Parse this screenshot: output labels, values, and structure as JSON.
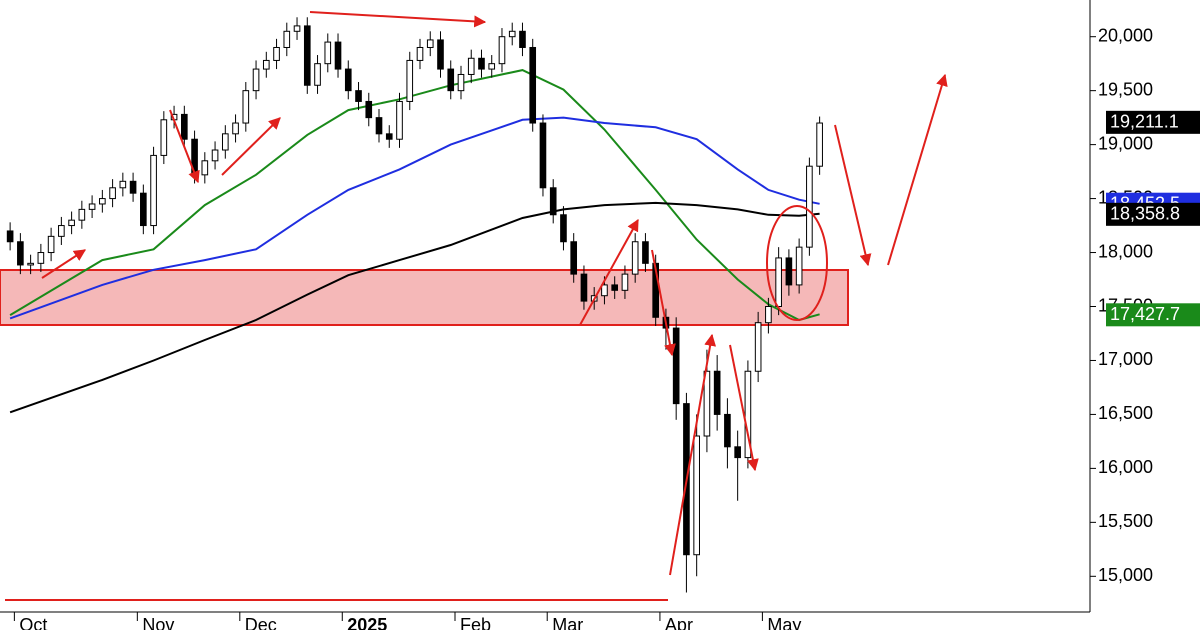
{
  "chart_data": {
    "type": "candlestick",
    "categories": [
      null,
      null,
      null,
      null,
      null,
      null,
      null,
      null,
      null,
      null,
      null,
      null,
      null,
      null,
      null,
      null,
      null,
      null,
      null,
      null,
      null,
      null,
      null,
      null,
      null,
      null,
      null,
      null,
      null,
      null,
      null,
      null,
      null,
      null,
      null,
      null,
      null,
      null,
      null,
      null,
      null,
      null,
      null,
      null,
      null,
      null,
      null,
      null,
      null,
      null,
      null,
      null,
      null,
      null,
      null,
      null,
      null,
      null,
      null,
      null,
      null,
      null,
      null,
      null,
      null,
      null,
      null,
      null,
      null,
      null,
      null,
      null,
      null,
      null,
      null,
      null,
      null,
      null,
      null,
      null
    ],
    "open": [
      18200,
      18100,
      17885,
      17900,
      18000,
      18150,
      18250,
      18300,
      18400,
      18450,
      18500,
      18600,
      18660,
      18550,
      18250,
      18900,
      19230,
      19280,
      19050,
      18720,
      18850,
      18950,
      19100,
      19200,
      19500,
      19700,
      19780,
      19900,
      20050,
      20100,
      19550,
      19750,
      19950,
      19700,
      19500,
      19400,
      19250,
      19100,
      19050,
      19400,
      19780,
      19900,
      19970,
      19700,
      19500,
      19650,
      19800,
      19700,
      19750,
      20000,
      20050,
      19900,
      19200,
      18600,
      18350,
      18100,
      17800,
      17550,
      17600,
      17700,
      17650,
      17800,
      18100,
      17900,
      17400,
      17300,
      16600,
      15200,
      16300,
      16900,
      16500,
      16200,
      16100,
      16900,
      17350,
      17500,
      17950,
      17700,
      18050,
      18800
    ],
    "high": [
      18280,
      18180,
      17980,
      18080,
      18230,
      18330,
      18380,
      18480,
      18530,
      18580,
      18680,
      18740,
      18740,
      18630,
      18980,
      19310,
      19360,
      19360,
      19130,
      18930,
      19030,
      19180,
      19280,
      19580,
      19780,
      19860,
      19980,
      20130,
      20180,
      20180,
      19830,
      20030,
      20030,
      19780,
      19580,
      19480,
      19330,
      19180,
      19480,
      19860,
      19980,
      20050,
      20050,
      19780,
      19730,
      19880,
      19880,
      19830,
      20080,
      20130,
      20130,
      19980,
      19280,
      18680,
      18430,
      18180,
      17880,
      17680,
      17780,
      17780,
      17880,
      18180,
      18180,
      17980,
      17480,
      17400,
      16700,
      16500,
      17100,
      17050,
      16650,
      16350,
      17000,
      17450,
      17580,
      18050,
      18030,
      18130,
      18880,
      19260
    ],
    "low": [
      18020,
      17800,
      17800,
      17820,
      17920,
      18070,
      18170,
      18220,
      18320,
      18370,
      18420,
      18520,
      18470,
      18170,
      18170,
      18820,
      19150,
      18970,
      18640,
      18640,
      18770,
      18870,
      19020,
      19120,
      19420,
      19620,
      19700,
      19820,
      19970,
      19470,
      19470,
      19670,
      19620,
      19420,
      19320,
      19170,
      19020,
      18970,
      18970,
      19320,
      19700,
      19820,
      19620,
      19420,
      19420,
      19570,
      19620,
      19620,
      19670,
      19920,
      19820,
      19120,
      18520,
      18270,
      18020,
      17720,
      17470,
      17470,
      17520,
      17570,
      17570,
      17720,
      17820,
      17320,
      17100,
      16450,
      14850,
      15000,
      16150,
      16350,
      16000,
      15700,
      16000,
      16800,
      17250,
      17420,
      17600,
      17620,
      17970,
      18720
    ],
    "close": [
      18100,
      17885,
      17900,
      18000,
      18150,
      18250,
      18300,
      18400,
      18450,
      18500,
      18600,
      18660,
      18550,
      18250,
      18900,
      19230,
      19280,
      19050,
      18720,
      18850,
      18950,
      19100,
      19200,
      19500,
      19700,
      19780,
      19900,
      20050,
      20100,
      19550,
      19750,
      19950,
      19700,
      19500,
      19400,
      19250,
      19100,
      19050,
      19400,
      19780,
      19900,
      19970,
      19700,
      19500,
      19650,
      19800,
      19700,
      19750,
      20000,
      20050,
      19900,
      19200,
      18600,
      18350,
      18100,
      17800,
      17550,
      17600,
      17700,
      17650,
      17800,
      18100,
      17900,
      17400,
      17300,
      16600,
      15200,
      16300,
      16900,
      16500,
      16200,
      16100,
      16900,
      17350,
      17500,
      17950,
      17700,
      18050,
      18800,
      19200
    ],
    "lines": [
      {
        "color": "#1a8a1a",
        "x": [
          0,
          9,
          14,
          19,
          24,
          29,
          33,
          38,
          43,
          50,
          54,
          58,
          63,
          67,
          71,
          74,
          77,
          79
        ],
        "values": [
          17420,
          17930,
          18030,
          18440,
          18720,
          19090,
          19320,
          19420,
          19550,
          19690,
          19510,
          19140,
          18580,
          18120,
          17750,
          17520,
          17375,
          17428
        ]
      },
      {
        "color": "#1f2ee0",
        "x": [
          0,
          9,
          14,
          19,
          24,
          29,
          33,
          38,
          43,
          50,
          54,
          58,
          63,
          67,
          71,
          74,
          77,
          79
        ],
        "values": [
          17390,
          17700,
          17840,
          17930,
          18030,
          18350,
          18580,
          18770,
          19000,
          19230,
          19250,
          19200,
          19160,
          19050,
          18770,
          18580,
          18490,
          18452
        ]
      },
      {
        "color": "#000000",
        "x": [
          0,
          9,
          14,
          19,
          24,
          29,
          33,
          38,
          43,
          50,
          54,
          58,
          63,
          67,
          71,
          74,
          77,
          79
        ],
        "values": [
          16520,
          16820,
          17000,
          17190,
          17375,
          17610,
          17790,
          17930,
          18070,
          18320,
          18400,
          18440,
          18460,
          18440,
          18400,
          18350,
          18340,
          18359
        ]
      }
    ],
    "price_labels": [
      {
        "value": 19211.1,
        "label": "19,211.1",
        "color": "#000000"
      },
      {
        "value": 18452.5,
        "label": "18,452.5",
        "color": "#1f2ee0"
      },
      {
        "value": 18358.8,
        "label": "18,358.8",
        "color": "#000000"
      },
      {
        "value": 17427.7,
        "label": "17,427.7",
        "color": "#1a8a1a"
      }
    ],
    "xlim": [
      -0.5,
      80.5
    ],
    "xticks": [
      {
        "value": 1,
        "label": "Oct"
      },
      {
        "value": 13,
        "label": "Nov"
      },
      {
        "value": 23,
        "label": "Dec"
      },
      {
        "value": 33,
        "label": "2025"
      },
      {
        "value": 44,
        "label": "Feb"
      },
      {
        "value": 53,
        "label": "Mar"
      },
      {
        "value": 64,
        "label": "Apr"
      },
      {
        "value": 74,
        "label": "May"
      }
    ],
    "ylim": [
      14660,
      20340
    ],
    "yticks": [
      {
        "value": 15000,
        "label": "15,000"
      },
      {
        "value": 15500,
        "label": "15,500"
      },
      {
        "value": 16000,
        "label": "16,000"
      },
      {
        "value": 16500,
        "label": "16,500"
      },
      {
        "value": 17000,
        "label": "17,000"
      },
      {
        "value": 17500,
        "label": "17,500"
      },
      {
        "value": 18000,
        "label": "18,000"
      },
      {
        "value": 18500,
        "label": "18,500"
      },
      {
        "value": 19000,
        "label": "19,000"
      },
      {
        "value": 19500,
        "label": "19,500"
      },
      {
        "value": 20000,
        "label": "20,000"
      }
    ]
  }
}
